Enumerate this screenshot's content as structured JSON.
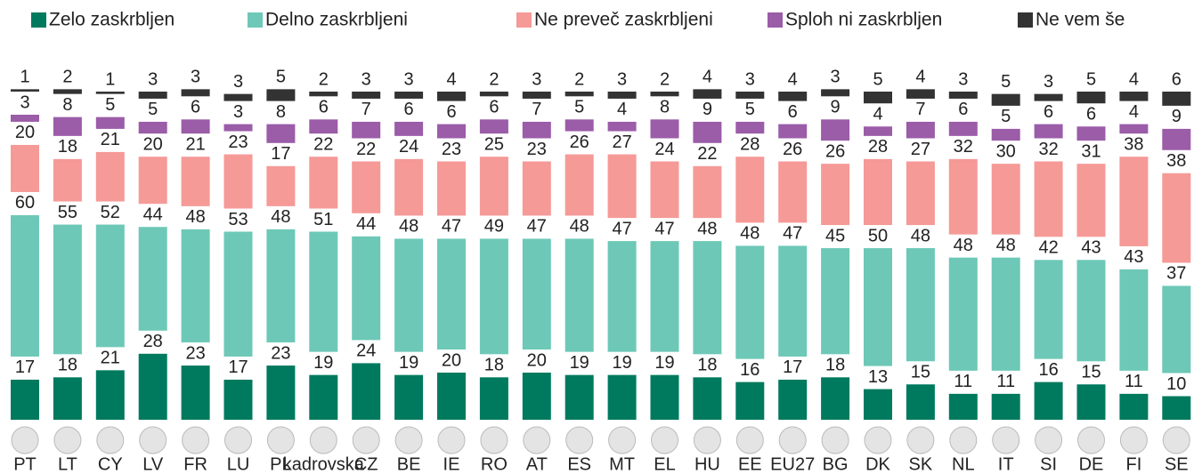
{
  "chart_data": {
    "type": "stacked_bar",
    "categories": [
      "PT",
      "LT",
      "CY",
      "LV",
      "FR",
      "LU",
      "PL",
      "kadrovska",
      "CZ",
      "BE",
      "IE",
      "RO",
      "AT",
      "ES",
      "MT",
      "EL",
      "HU",
      "EE",
      "EU27",
      "BG",
      "DK",
      "SK",
      "NL",
      "IT",
      "SI",
      "DE",
      "FI",
      "SE"
    ],
    "series": [
      {
        "name": "Zelo zaskrbljen",
        "color": "#007a5e",
        "values": [
          17,
          18,
          21,
          28,
          23,
          17,
          23,
          19,
          24,
          19,
          20,
          18,
          20,
          19,
          19,
          19,
          18,
          16,
          17,
          18,
          13,
          15,
          11,
          11,
          16,
          15,
          11,
          10
        ]
      },
      {
        "name": "Delno zaskrbljeni",
        "color": "#6dc8b7",
        "values": [
          60,
          55,
          52,
          44,
          48,
          53,
          48,
          51,
          44,
          48,
          47,
          49,
          47,
          48,
          47,
          47,
          48,
          48,
          47,
          45,
          50,
          48,
          48,
          48,
          42,
          43,
          43,
          37
        ]
      },
      {
        "name": "Ne preveč zaskrbljeni",
        "color": "#f59a97",
        "values": [
          20,
          18,
          21,
          20,
          21,
          23,
          17,
          22,
          22,
          24,
          23,
          25,
          23,
          26,
          27,
          24,
          22,
          28,
          26,
          26,
          28,
          27,
          32,
          30,
          32,
          31,
          38,
          38
        ]
      },
      {
        "name": "Sploh ni zaskrbljen",
        "color": "#9b5ca8",
        "values": [
          3,
          8,
          5,
          5,
          6,
          3,
          8,
          6,
          7,
          6,
          6,
          6,
          7,
          5,
          4,
          8,
          9,
          5,
          6,
          9,
          4,
          7,
          6,
          5,
          6,
          6,
          4,
          9
        ]
      },
      {
        "name": "Ne vem še",
        "color": "#333333",
        "values": [
          1,
          2,
          1,
          3,
          3,
          3,
          5,
          2,
          3,
          3,
          4,
          2,
          3,
          2,
          3,
          2,
          4,
          3,
          4,
          3,
          5,
          4,
          3,
          5,
          3,
          5,
          4,
          6
        ]
      }
    ]
  }
}
